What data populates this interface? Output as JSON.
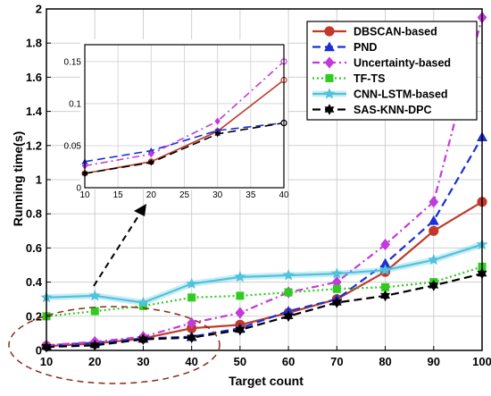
{
  "chart_data": {
    "type": "line",
    "xlabel": "Target count",
    "ylabel": "Running time(s)",
    "x": [
      10,
      20,
      30,
      40,
      50,
      60,
      70,
      80,
      90,
      100
    ],
    "xlim": [
      10,
      100
    ],
    "ylim": [
      0,
      2
    ],
    "xticks": [
      "10",
      "20",
      "30",
      "40",
      "50",
      "60",
      "70",
      "80",
      "90",
      "100"
    ],
    "yticks": [
      "0",
      "0.2",
      "0.4",
      "0.6",
      "0.8",
      "1",
      "1.2",
      "1.4",
      "1.6",
      "1.8",
      "2"
    ],
    "grid": true,
    "legend_position": "top-right",
    "series": [
      {
        "name": "DBSCAN-based",
        "color": "#c0392b",
        "dash": "solid",
        "marker": "circle",
        "values": [
          0.025,
          0.04,
          0.07,
          0.13,
          0.15,
          0.22,
          0.3,
          0.46,
          0.7,
          0.87
        ]
      },
      {
        "name": "PND",
        "color": "#1a2fd6",
        "dash": "dashed",
        "marker": "triangle",
        "values": [
          0.03,
          0.045,
          0.07,
          0.08,
          0.13,
          0.23,
          0.3,
          0.51,
          0.76,
          1.25
        ]
      },
      {
        "name": "Uncertainty-based",
        "color": "#c23ad9",
        "dash": "dashdot",
        "marker": "diamond",
        "values": [
          0.03,
          0.05,
          0.08,
          0.16,
          0.22,
          0.34,
          0.4,
          0.62,
          0.87,
          1.95
        ]
      },
      {
        "name": "TF-TS",
        "color": "#2ecc1f",
        "dash": "dotted",
        "marker": "square",
        "values": [
          0.2,
          0.23,
          0.26,
          0.31,
          0.32,
          0.34,
          0.36,
          0.37,
          0.4,
          0.49
        ]
      },
      {
        "name": "CNN-LSTM-based",
        "color": "#4fc3dc",
        "dash": "solid",
        "marker": "star",
        "values": [
          0.31,
          0.32,
          0.28,
          0.39,
          0.43,
          0.44,
          0.45,
          0.47,
          0.53,
          0.62
        ]
      },
      {
        "name": "SAS-KNN-DPC",
        "color": "#000000",
        "dash": "dashed",
        "marker": "hexagram",
        "values": [
          0.02,
          0.03,
          0.065,
          0.075,
          0.12,
          0.2,
          0.28,
          0.32,
          0.38,
          0.45
        ]
      }
    ],
    "inset": {
      "xlim": [
        10,
        40
      ],
      "ylim": [
        0,
        0.17
      ],
      "xticks": [
        "10",
        "15",
        "20",
        "25",
        "30",
        "35",
        "40"
      ],
      "yticks": [
        "0",
        "0.05",
        "0.1",
        "0.15"
      ],
      "x": [
        10,
        20,
        30,
        40
      ],
      "series": [
        {
          "name": "DBSCAN-based",
          "values": [
            0.017,
            0.031,
            0.067,
            0.128
          ]
        },
        {
          "name": "PND",
          "values": [
            0.031,
            0.044,
            0.068,
            0.077
          ]
        },
        {
          "name": "Uncertainty-based",
          "values": [
            0.026,
            0.04,
            0.079,
            0.15
          ]
        },
        {
          "name": "SAS-KNN-DPC",
          "values": [
            0.017,
            0.03,
            0.064,
            0.077
          ]
        }
      ]
    }
  }
}
